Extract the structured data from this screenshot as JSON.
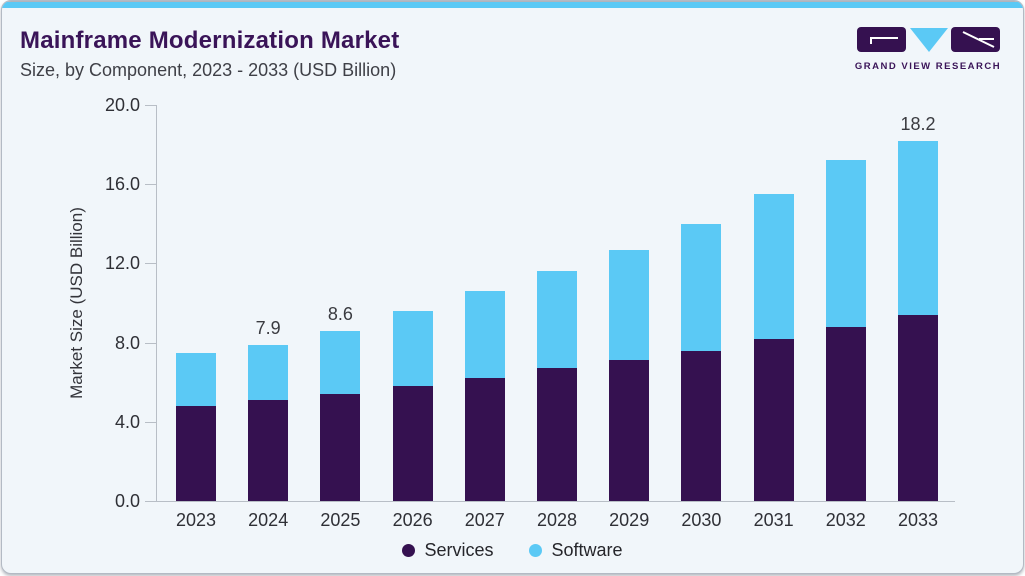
{
  "header": {
    "title": "Mainframe Modernization Market",
    "subtitle": "Size, by Component, 2023 - 2033 (USD Billion)"
  },
  "logo": {
    "text": "GRAND VIEW RESEARCH"
  },
  "colors": {
    "accent_blue": "#5bc9f5",
    "brand_purple": "#3a1458",
    "services": "#351150",
    "software": "#5bc9f5",
    "card_background": "#f1f6fa",
    "axis": "#b8bec6",
    "top_gray_line": "#b0b4bc"
  },
  "chart_data": {
    "type": "bar",
    "stacked": true,
    "title": "Mainframe Modernization Market Size, by Component, 2023 - 2033 (USD Billion)",
    "xlabel": "",
    "ylabel": "Market Size (USD Billion)",
    "ylim": [
      0,
      20
    ],
    "yticks": [
      "0.0",
      "4.0",
      "8.0",
      "12.0",
      "16.0",
      "20.0"
    ],
    "grid": false,
    "legend_position": "bottom",
    "categories": [
      "2023",
      "2024",
      "2025",
      "2026",
      "2027",
      "2028",
      "2029",
      "2030",
      "2031",
      "2032",
      "2033"
    ],
    "series": [
      {
        "name": "Services",
        "color": "#351150",
        "values": [
          4.8,
          5.1,
          5.4,
          5.8,
          6.2,
          6.7,
          7.1,
          7.6,
          8.2,
          8.8,
          9.4
        ]
      },
      {
        "name": "Software",
        "color": "#5bc9f5",
        "values": [
          2.7,
          2.8,
          3.2,
          3.8,
          4.4,
          4.9,
          5.6,
          6.4,
          7.3,
          8.4,
          8.8
        ]
      }
    ],
    "totals": [
      7.5,
      7.9,
      8.6,
      9.6,
      10.6,
      11.6,
      12.7,
      14.0,
      15.5,
      17.2,
      18.2
    ],
    "shown_total_labels": [
      "",
      "7.9",
      "8.6",
      "",
      "",
      "",
      "",
      "",
      "",
      "",
      "18.2"
    ]
  },
  "legend": {
    "items": [
      {
        "label": "Services",
        "color": "#351150"
      },
      {
        "label": "Software",
        "color": "#5bc9f5"
      }
    ]
  }
}
